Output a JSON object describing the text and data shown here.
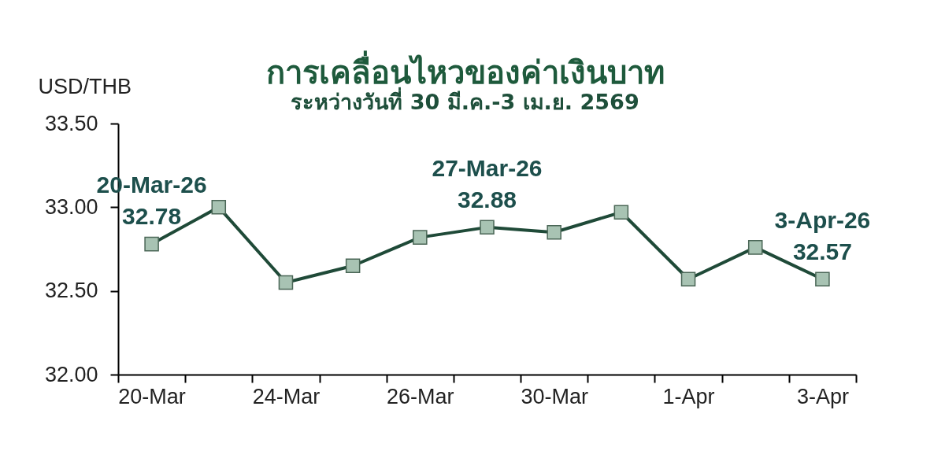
{
  "chart_data": {
    "type": "line",
    "title": "การเคลื่อนไหวของค่าเงินบาท",
    "subtitle": "ระหว่างวันที่ 30 มี.ค.-3 เม.ย. 2569",
    "ylabel": "USD/THB",
    "categories": [
      "20-Mar",
      null,
      "24-Mar",
      null,
      "26-Mar",
      null,
      "30-Mar",
      null,
      "1-Apr",
      null,
      "3-Apr"
    ],
    "values": [
      32.78,
      33.0,
      32.55,
      32.65,
      32.82,
      32.88,
      32.85,
      32.97,
      32.57,
      32.76,
      32.57
    ],
    "color": "#1f4a38",
    "value_labels": [
      "20-Mar-26\n32.78",
      null,
      null,
      null,
      null,
      "27-Mar-26\n32.88",
      null,
      null,
      null,
      null,
      "3-Apr-26\n32.57"
    ],
    "ylim": [
      32.0,
      33.5
    ],
    "yticks": [
      {
        "value": 32.0,
        "label": "32.00"
      },
      {
        "value": 32.5,
        "label": "32.50"
      },
      {
        "value": 33.0,
        "label": "33.00"
      },
      {
        "value": 33.5,
        "label": "33.50"
      }
    ],
    "marker": "square",
    "line_style": "solid"
  }
}
